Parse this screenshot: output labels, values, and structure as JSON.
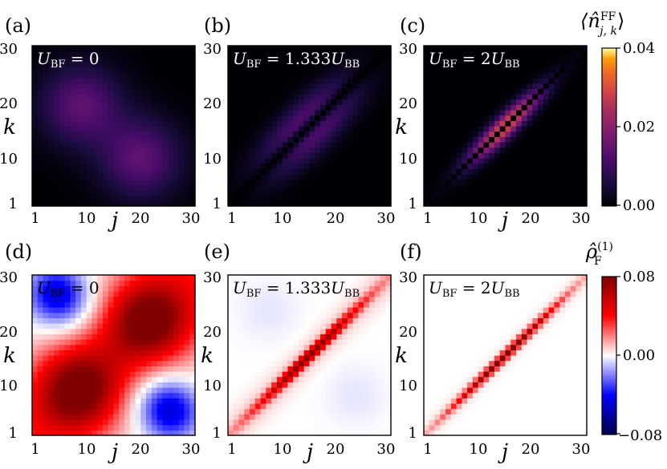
{
  "chart_data": [
    {
      "type": "heatmap",
      "panel_label": "(a)",
      "annotation": {
        "symbol": "U",
        "sub": "BF",
        "eq": " = 0",
        "rhs_symbol": "",
        "rhs_sub": ""
      },
      "model": "split",
      "grid": 30,
      "xlabel": "j",
      "ylabel": "k",
      "xticks": [
        "1",
        "10",
        "20",
        "30"
      ],
      "yticks": [
        "1",
        "10",
        "20",
        "30"
      ],
      "colorbar": "inferno",
      "value_range": [
        0,
        0.04
      ],
      "peak_value": 0.012
    },
    {
      "type": "heatmap",
      "panel_label": "(b)",
      "annotation": {
        "symbol": "U",
        "sub": "BF",
        "eq": " = 1.333",
        "rhs_symbol": "U",
        "rhs_sub": "BB"
      },
      "model": "split-diag",
      "grid": 30,
      "xlabel": "",
      "ylabel": "",
      "xticks": [
        "1",
        "10",
        "20",
        "30"
      ],
      "yticks": [
        "1",
        "10",
        "20",
        "30"
      ],
      "colorbar": "inferno",
      "value_range": [
        0,
        0.04
      ],
      "peak_value": 0.009
    },
    {
      "type": "heatmap",
      "panel_label": "(c)",
      "annotation": {
        "symbol": "U",
        "sub": "BF",
        "eq": " = 2",
        "rhs_symbol": "U",
        "rhs_sub": "BB"
      },
      "model": "diag-band",
      "grid": 30,
      "xlabel": "j",
      "ylabel": "k",
      "xticks": [
        "1",
        "10",
        "20",
        "30"
      ],
      "yticks": [
        "1",
        "10",
        "20",
        "30"
      ],
      "colorbar": "inferno",
      "value_range": [
        0,
        0.04
      ],
      "peak_value": 0.027
    },
    {
      "type": "heatmap",
      "panel_label": "(d)",
      "annotation": {
        "symbol": "U",
        "sub": "BF",
        "eq": " = 0",
        "rhs_symbol": "",
        "rhs_sub": ""
      },
      "model": "blocks",
      "grid": 30,
      "xlabel": "j",
      "ylabel": "k",
      "xticks": [
        "1",
        "10",
        "20",
        "30"
      ],
      "yticks": [
        "1",
        "10",
        "20",
        "30"
      ],
      "colorbar": "seismic",
      "value_range": [
        -0.08,
        0.08
      ],
      "peak_value": 0.06,
      "min_value": -0.03
    },
    {
      "type": "heatmap",
      "panel_label": "(e)",
      "annotation": {
        "symbol": "U",
        "sub": "BF",
        "eq": " = 1.333",
        "rhs_symbol": "U",
        "rhs_sub": "BB"
      },
      "model": "diag-neg",
      "grid": 30,
      "xlabel": "j",
      "ylabel": "k",
      "xticks": [
        "1",
        "10",
        "20",
        "30"
      ],
      "yticks": [
        "1",
        "10",
        "20",
        "30"
      ],
      "colorbar": "seismic",
      "value_range": [
        -0.08,
        0.08
      ],
      "peak_value": 0.07,
      "min_value": -0.004
    },
    {
      "type": "heatmap",
      "panel_label": "(f)",
      "annotation": {
        "symbol": "U",
        "sub": "BF",
        "eq": " = 2",
        "rhs_symbol": "U",
        "rhs_sub": "BB"
      },
      "model": "diag",
      "grid": 30,
      "xlabel": "j",
      "ylabel": "k",
      "xticks": [
        "1",
        "10",
        "20",
        "30"
      ],
      "yticks": [
        "1",
        "10",
        "20",
        "30"
      ],
      "colorbar": "seismic",
      "value_range": [
        -0.08,
        0.08
      ],
      "peak_value": 0.078
    }
  ],
  "colorbars": {
    "top": {
      "title_main": "⟨n̂",
      "title_sub": "j, k",
      "title_sup": "FF",
      "title_close": "⟩",
      "ticks": [
        "0.04",
        "0.02",
        "0.00"
      ]
    },
    "bottom": {
      "title_main": "ρ̂",
      "title_sub": "F",
      "title_sup": "(1)",
      "ticks": [
        "0.08",
        "0.00",
        "−0.08"
      ]
    }
  }
}
